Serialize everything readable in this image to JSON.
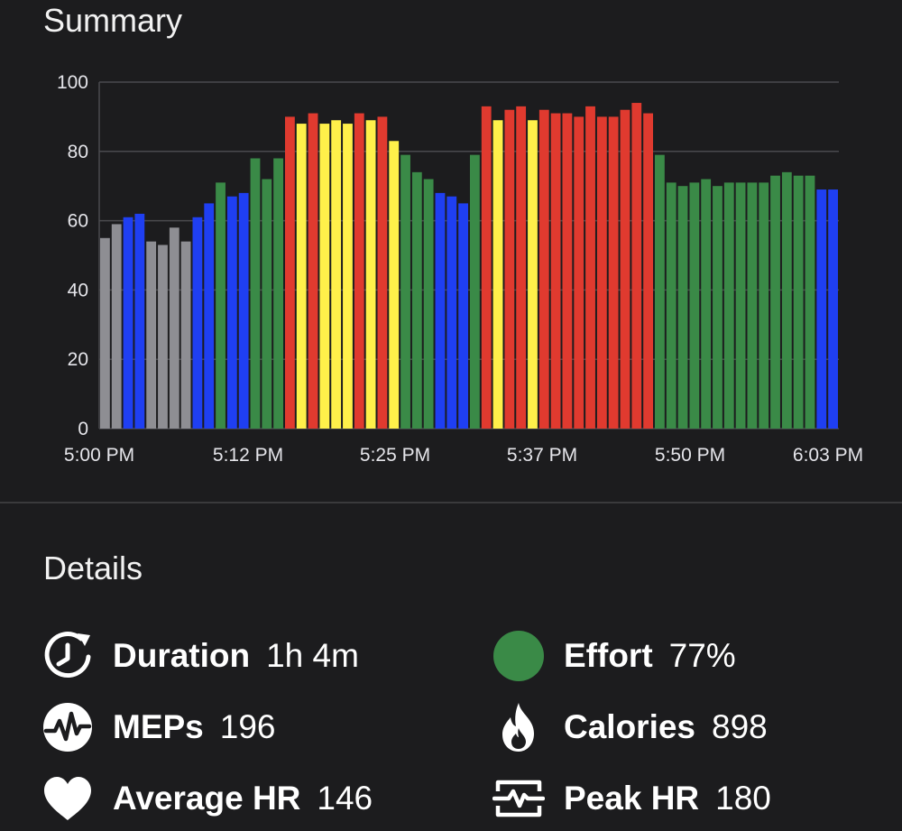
{
  "summary": {
    "title": "Summary"
  },
  "chart_data": {
    "type": "bar",
    "ylim": [
      0,
      100
    ],
    "yticks": [
      "0",
      "20",
      "40",
      "60",
      "80",
      "100"
    ],
    "xtick_labels": [
      "5:00 PM",
      "5:12 PM",
      "5:25 PM",
      "5:37 PM",
      "5:50 PM",
      "6:03 PM"
    ],
    "grid": true,
    "zone_colors": {
      "gray": "#8e8e93",
      "blue": "#1f3ff2",
      "green": "#3a8a47",
      "yellow": "#fff04a",
      "red": "#e03a2f"
    },
    "values": [
      55,
      59,
      61,
      62,
      54,
      53,
      58,
      54,
      61,
      65,
      71,
      67,
      68,
      78,
      72,
      78,
      90,
      88,
      91,
      88,
      89,
      88,
      91,
      89,
      90,
      83,
      79,
      74,
      72,
      68,
      67,
      65,
      79,
      93,
      89,
      92,
      93,
      89,
      92,
      91,
      91,
      90,
      93,
      90,
      90,
      92,
      94,
      91,
      79,
      71,
      70,
      71,
      72,
      70,
      71,
      71,
      71,
      71,
      73,
      74,
      73,
      73,
      69,
      69
    ],
    "zones": [
      "gray",
      "gray",
      "blue",
      "blue",
      "gray",
      "gray",
      "gray",
      "gray",
      "blue",
      "blue",
      "green",
      "blue",
      "blue",
      "green",
      "green",
      "green",
      "red",
      "yellow",
      "red",
      "yellow",
      "yellow",
      "yellow",
      "red",
      "yellow",
      "red",
      "yellow",
      "green",
      "green",
      "green",
      "blue",
      "blue",
      "blue",
      "green",
      "red",
      "yellow",
      "red",
      "red",
      "yellow",
      "red",
      "red",
      "red",
      "red",
      "red",
      "red",
      "red",
      "red",
      "red",
      "red",
      "green",
      "green",
      "green",
      "green",
      "green",
      "green",
      "green",
      "green",
      "green",
      "green",
      "green",
      "green",
      "green",
      "green",
      "blue",
      "blue"
    ]
  },
  "details": {
    "title": "Details",
    "duration": {
      "label": "Duration",
      "value": "1h 4m",
      "icon": "duration-icon"
    },
    "effort": {
      "label": "Effort",
      "value": "77%",
      "icon": "effort-dot",
      "color": "#3a8a47"
    },
    "meps": {
      "label": "MEPs",
      "value": "196",
      "icon": "meps-icon"
    },
    "calories": {
      "label": "Calories",
      "value": "898",
      "icon": "flame-icon"
    },
    "average_hr": {
      "label": "Average HR",
      "value": "146",
      "icon": "heart-icon"
    },
    "peak_hr": {
      "label": "Peak HR",
      "value": "180",
      "icon": "peak-hr-icon"
    }
  }
}
